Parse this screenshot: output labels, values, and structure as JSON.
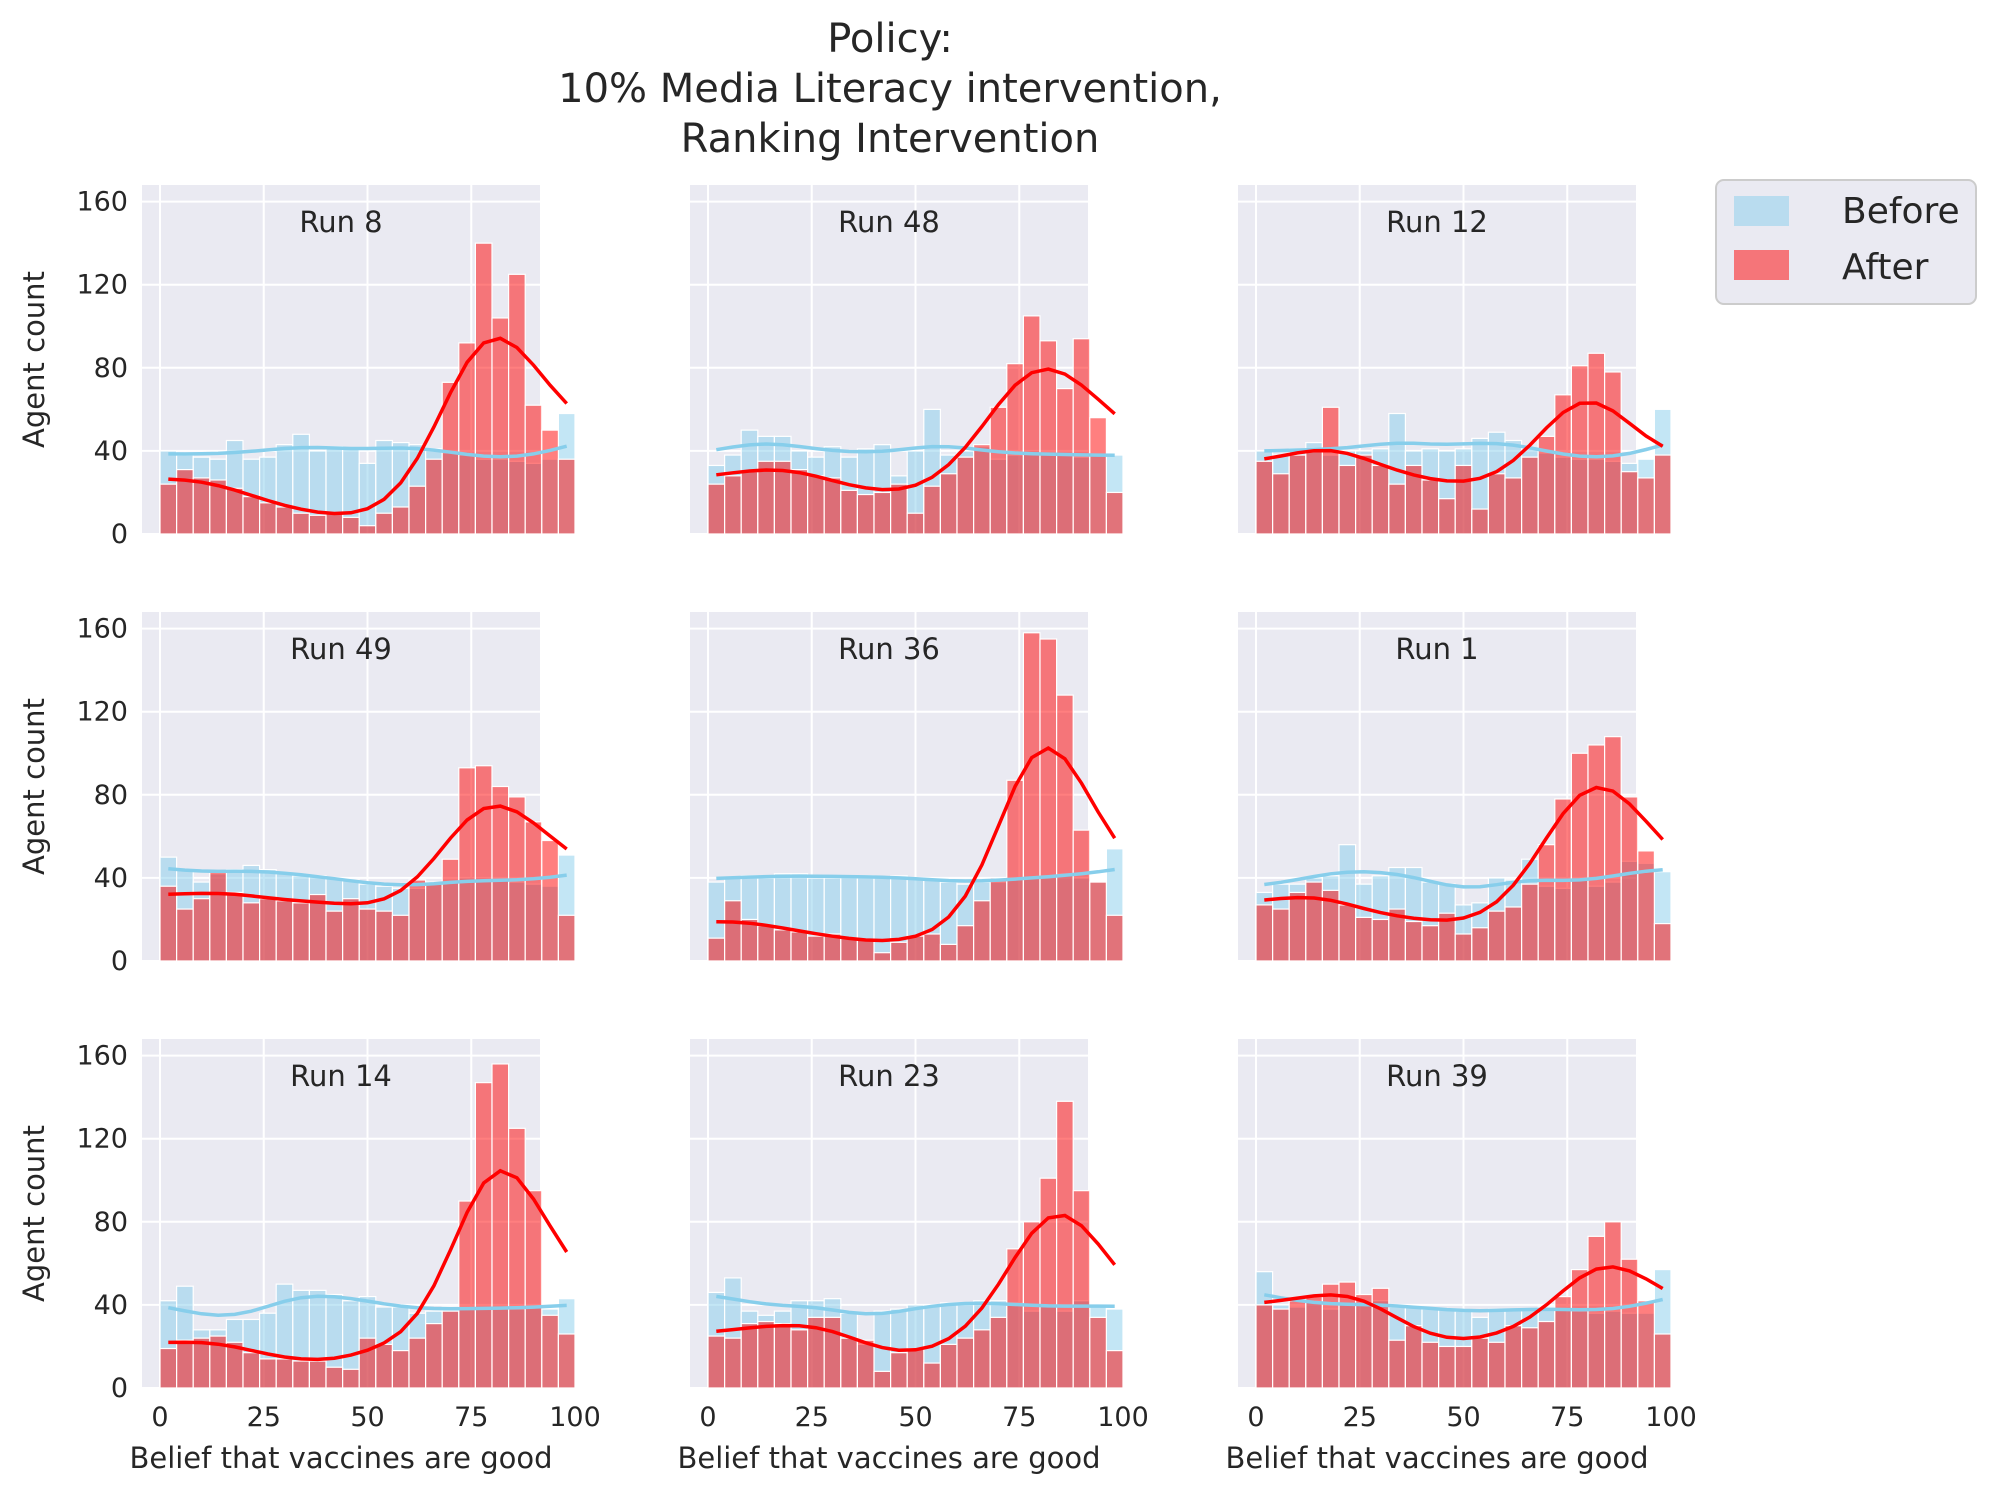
{
  "chart_data": {
    "type": "bar",
    "title": [
      "Policy:",
      "10% Media Literacy intervention,",
      "Ranking Intervention"
    ],
    "xlabel": "Belief that vaccines are good",
    "ylabel": "Agent count",
    "xlim": [
      0,
      100
    ],
    "ylim": [
      0,
      160
    ],
    "xticks": [
      0,
      25,
      50,
      75,
      100
    ],
    "yticks": [
      0,
      40,
      80,
      120,
      160
    ],
    "grid": true,
    "legend_position": "upper-right-outside",
    "bins": 25,
    "colors": {
      "before": "#87ceeb",
      "after": "#ff0000",
      "background": "#eaeaf2"
    },
    "series_names": [
      "Before",
      "After"
    ],
    "panels": [
      {
        "title": "Run 8",
        "before": [
          40,
          38,
          37,
          36,
          45,
          36,
          37,
          43,
          48,
          40,
          42,
          41,
          34,
          45,
          44,
          43,
          41,
          39,
          38,
          36,
          36,
          35,
          34,
          36,
          58
        ],
        "after": [
          24,
          31,
          27,
          26,
          22,
          18,
          15,
          13,
          10,
          9,
          10,
          8,
          4,
          10,
          13,
          23,
          36,
          73,
          92,
          140,
          104,
          125,
          62,
          50,
          36
        ]
      },
      {
        "title": "Run 48",
        "before": [
          33,
          38,
          50,
          47,
          47,
          40,
          37,
          42,
          37,
          41,
          43,
          28,
          40,
          60,
          38,
          40,
          42,
          36,
          38,
          40,
          39,
          38,
          37,
          38,
          38
        ],
        "after": [
          24,
          28,
          30,
          35,
          35,
          31,
          28,
          27,
          21,
          19,
          20,
          24,
          10,
          23,
          29,
          37,
          43,
          61,
          82,
          105,
          93,
          70,
          94,
          56,
          20
        ]
      },
      {
        "title": "Run 12",
        "before": [
          40,
          38,
          41,
          44,
          38,
          40,
          40,
          41,
          58,
          40,
          41,
          40,
          41,
          46,
          49,
          45,
          41,
          39,
          37,
          36,
          36,
          35,
          34,
          36,
          60
        ],
        "after": [
          35,
          29,
          38,
          41,
          61,
          33,
          38,
          33,
          24,
          33,
          26,
          17,
          33,
          12,
          29,
          27,
          37,
          47,
          67,
          81,
          87,
          78,
          30,
          27,
          38
        ]
      },
      {
        "title": "Run 49",
        "before": [
          50,
          44,
          38,
          42,
          44,
          46,
          44,
          42,
          41,
          41,
          40,
          39,
          37,
          36,
          35,
          35,
          37,
          38,
          40,
          40,
          39,
          38,
          37,
          36,
          51
        ],
        "after": [
          36,
          25,
          30,
          43,
          33,
          28,
          30,
          29,
          28,
          32,
          24,
          30,
          25,
          24,
          22,
          39,
          38,
          49,
          93,
          94,
          84,
          79,
          67,
          58,
          22
        ]
      },
      {
        "title": "Run 36",
        "before": [
          38,
          40,
          41,
          40,
          42,
          42,
          40,
          40,
          41,
          41,
          40,
          41,
          40,
          39,
          38,
          37,
          38,
          38,
          40,
          40,
          41,
          42,
          40,
          38,
          54
        ],
        "after": [
          11,
          29,
          20,
          17,
          15,
          14,
          12,
          13,
          11,
          10,
          4,
          9,
          12,
          13,
          8,
          17,
          29,
          40,
          87,
          158,
          155,
          128,
          63,
          38,
          22
        ]
      },
      {
        "title": "Run 1",
        "before": [
          33,
          37,
          37,
          40,
          41,
          56,
          37,
          41,
          45,
          45,
          38,
          37,
          27,
          28,
          40,
          39,
          49,
          36,
          35,
          39,
          36,
          38,
          48,
          47,
          43
        ],
        "after": [
          27,
          25,
          33,
          38,
          34,
          27,
          21,
          20,
          25,
          19,
          17,
          23,
          13,
          16,
          24,
          26,
          37,
          56,
          78,
          100,
          104,
          108,
          79,
          53,
          18
        ]
      },
      {
        "title": "Run 14",
        "before": [
          42,
          49,
          28,
          28,
          33,
          33,
          36,
          50,
          47,
          47,
          45,
          42,
          44,
          39,
          39,
          36,
          37,
          39,
          39,
          38,
          38,
          38,
          39,
          38,
          43
        ],
        "after": [
          19,
          23,
          24,
          25,
          22,
          17,
          14,
          14,
          13,
          13,
          10,
          9,
          24,
          21,
          18,
          24,
          31,
          37,
          90,
          147,
          156,
          125,
          95,
          35,
          26
        ]
      },
      {
        "title": "Run 23",
        "before": [
          46,
          53,
          37,
          35,
          37,
          42,
          42,
          43,
          36,
          21,
          37,
          38,
          40,
          40,
          41,
          41,
          42,
          42,
          41,
          37,
          40,
          37,
          42,
          40,
          38
        ],
        "after": [
          25,
          24,
          31,
          32,
          31,
          28,
          34,
          34,
          24,
          23,
          8,
          17,
          19,
          12,
          21,
          24,
          28,
          34,
          67,
          80,
          101,
          138,
          95,
          34,
          18
        ]
      },
      {
        "title": "Run 39",
        "before": [
          56,
          40,
          39,
          42,
          38,
          40,
          41,
          42,
          39,
          39,
          38,
          38,
          37,
          34,
          38,
          38,
          38,
          39,
          39,
          37,
          36,
          37,
          36,
          36,
          57
        ],
        "after": [
          40,
          38,
          42,
          44,
          50,
          51,
          45,
          48,
          23,
          30,
          22,
          20,
          20,
          24,
          22,
          30,
          29,
          32,
          44,
          57,
          73,
          80,
          62,
          42,
          26
        ]
      }
    ]
  }
}
